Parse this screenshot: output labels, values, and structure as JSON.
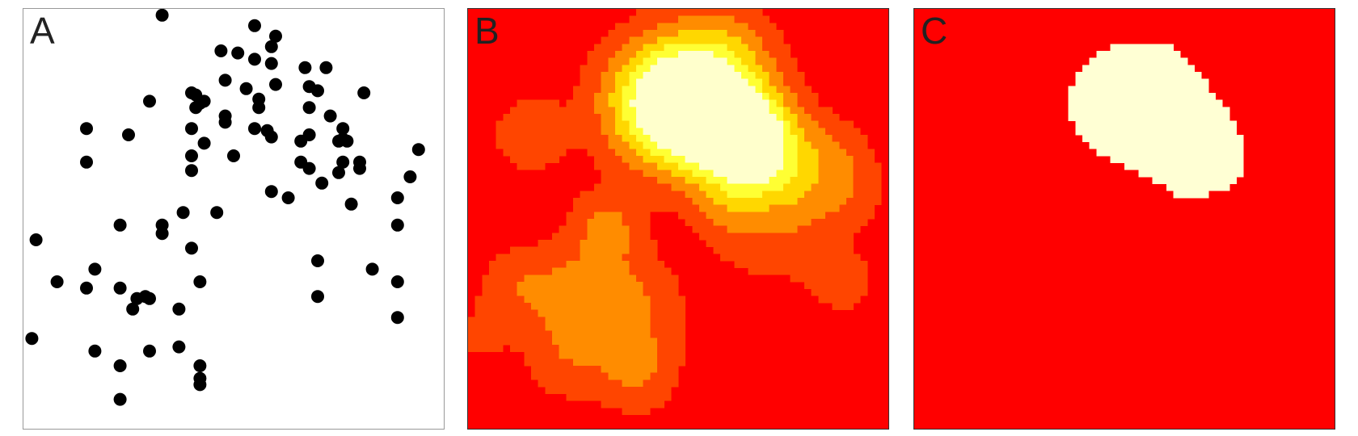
{
  "panels": [
    {
      "label": "A",
      "kind": "point-pattern"
    },
    {
      "label": "B",
      "kind": "density-heatmap"
    },
    {
      "label": "C",
      "kind": "threshold-mask"
    }
  ],
  "colors": {
    "point": "#000000",
    "heat_low": "#ff0000",
    "heat_1": "#ff4500",
    "heat_2": "#ff8c00",
    "heat_3": "#ffd700",
    "heat_4": "#ffff33",
    "heat_high": "#ffffcc",
    "mask_on": "#ffffd4",
    "mask_off": "#ff0000"
  },
  "points": [
    [
      0.33,
      0.985
    ],
    [
      0.55,
      0.96
    ],
    [
      0.6,
      0.935
    ],
    [
      0.59,
      0.91
    ],
    [
      0.47,
      0.9
    ],
    [
      0.51,
      0.895
    ],
    [
      0.55,
      0.88
    ],
    [
      0.59,
      0.87
    ],
    [
      0.67,
      0.86
    ],
    [
      0.72,
      0.86
    ],
    [
      0.48,
      0.83
    ],
    [
      0.6,
      0.82
    ],
    [
      0.68,
      0.815
    ],
    [
      0.53,
      0.81
    ],
    [
      0.7,
      0.805
    ],
    [
      0.4,
      0.8
    ],
    [
      0.41,
      0.795
    ],
    [
      0.43,
      0.78
    ],
    [
      0.81,
      0.8
    ],
    [
      0.3,
      0.78
    ],
    [
      0.56,
      0.785
    ],
    [
      0.42,
      0.775
    ],
    [
      0.56,
      0.765
    ],
    [
      0.41,
      0.765
    ],
    [
      0.68,
      0.765
    ],
    [
      0.48,
      0.745
    ],
    [
      0.48,
      0.73
    ],
    [
      0.73,
      0.745
    ],
    [
      0.15,
      0.715
    ],
    [
      0.4,
      0.715
    ],
    [
      0.58,
      0.71
    ],
    [
      0.59,
      0.695
    ],
    [
      0.55,
      0.715
    ],
    [
      0.68,
      0.7
    ],
    [
      0.25,
      0.7
    ],
    [
      0.43,
      0.68
    ],
    [
      0.66,
      0.685
    ],
    [
      0.76,
      0.715
    ],
    [
      0.76,
      0.69
    ],
    [
      0.75,
      0.685
    ],
    [
      0.77,
      0.685
    ],
    [
      0.94,
      0.665
    ],
    [
      0.15,
      0.635
    ],
    [
      0.4,
      0.65
    ],
    [
      0.4,
      0.615
    ],
    [
      0.5,
      0.65
    ],
    [
      0.66,
      0.635
    ],
    [
      0.68,
      0.62
    ],
    [
      0.76,
      0.635
    ],
    [
      0.8,
      0.635
    ],
    [
      0.8,
      0.62
    ],
    [
      0.75,
      0.61
    ],
    [
      0.92,
      0.6
    ],
    [
      0.71,
      0.585
    ],
    [
      0.59,
      0.565
    ],
    [
      0.63,
      0.55
    ],
    [
      0.89,
      0.55
    ],
    [
      0.78,
      0.535
    ],
    [
      0.38,
      0.515
    ],
    [
      0.46,
      0.515
    ],
    [
      0.33,
      0.485
    ],
    [
      0.23,
      0.485
    ],
    [
      0.33,
      0.465
    ],
    [
      0.89,
      0.485
    ],
    [
      0.03,
      0.45
    ],
    [
      0.4,
      0.43
    ],
    [
      0.7,
      0.4
    ],
    [
      0.83,
      0.38
    ],
    [
      0.17,
      0.38
    ],
    [
      0.08,
      0.35
    ],
    [
      0.15,
      0.335
    ],
    [
      0.23,
      0.335
    ],
    [
      0.42,
      0.35
    ],
    [
      0.89,
      0.35
    ],
    [
      0.29,
      0.315
    ],
    [
      0.27,
      0.31
    ],
    [
      0.3,
      0.31
    ],
    [
      0.26,
      0.285
    ],
    [
      0.37,
      0.285
    ],
    [
      0.7,
      0.315
    ],
    [
      0.02,
      0.215
    ],
    [
      0.89,
      0.265
    ],
    [
      0.17,
      0.185
    ],
    [
      0.3,
      0.185
    ],
    [
      0.37,
      0.195
    ],
    [
      0.23,
      0.15
    ],
    [
      0.42,
      0.15
    ],
    [
      0.42,
      0.12
    ],
    [
      0.42,
      0.105
    ],
    [
      0.23,
      0.07
    ]
  ],
  "density_field": {
    "grid": 60,
    "base": 0.02,
    "peaks": [
      [
        0.47,
        0.78,
        0.1,
        0.9
      ],
      [
        0.67,
        0.68,
        0.08,
        1.0
      ],
      [
        0.57,
        0.74,
        0.1,
        0.55
      ],
      [
        0.6,
        0.88,
        0.09,
        0.35
      ],
      [
        0.15,
        0.7,
        0.06,
        0.25
      ],
      [
        0.33,
        0.48,
        0.06,
        0.3
      ],
      [
        0.27,
        0.31,
        0.08,
        0.32
      ],
      [
        0.12,
        0.34,
        0.07,
        0.2
      ],
      [
        0.4,
        0.3,
        0.08,
        0.22
      ],
      [
        0.4,
        0.14,
        0.07,
        0.28
      ],
      [
        0.23,
        0.16,
        0.07,
        0.18
      ],
      [
        0.89,
        0.35,
        0.05,
        0.2
      ],
      [
        0.8,
        0.58,
        0.08,
        0.25
      ],
      [
        0.73,
        0.46,
        0.1,
        0.15
      ],
      [
        0.62,
        0.52,
        0.06,
        0.18
      ],
      [
        0.88,
        0.66,
        0.06,
        0.15
      ],
      [
        0.03,
        0.22,
        0.05,
        0.12
      ],
      [
        0.92,
        0.56,
        0.06,
        0.12
      ]
    ],
    "levels": [
      0.12,
      0.28,
      0.45,
      0.62,
      0.8
    ]
  },
  "mask_threshold": 0.62
}
